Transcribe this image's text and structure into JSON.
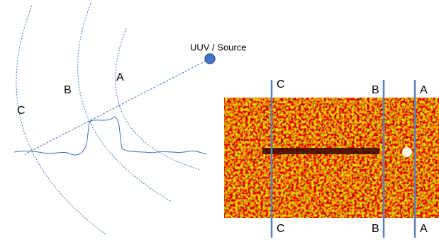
{
  "left_diagram": {
    "source_label": "UUV / Source",
    "arcs": [
      {
        "label": "A"
      },
      {
        "label": "B"
      },
      {
        "label": "C"
      }
    ]
  },
  "image_panel": {
    "lines": [
      {
        "top_label": "C",
        "bottom_label": "C"
      },
      {
        "top_label": "B",
        "bottom_label": "B"
      },
      {
        "top_label": "A",
        "bottom_label": "A"
      }
    ]
  }
}
